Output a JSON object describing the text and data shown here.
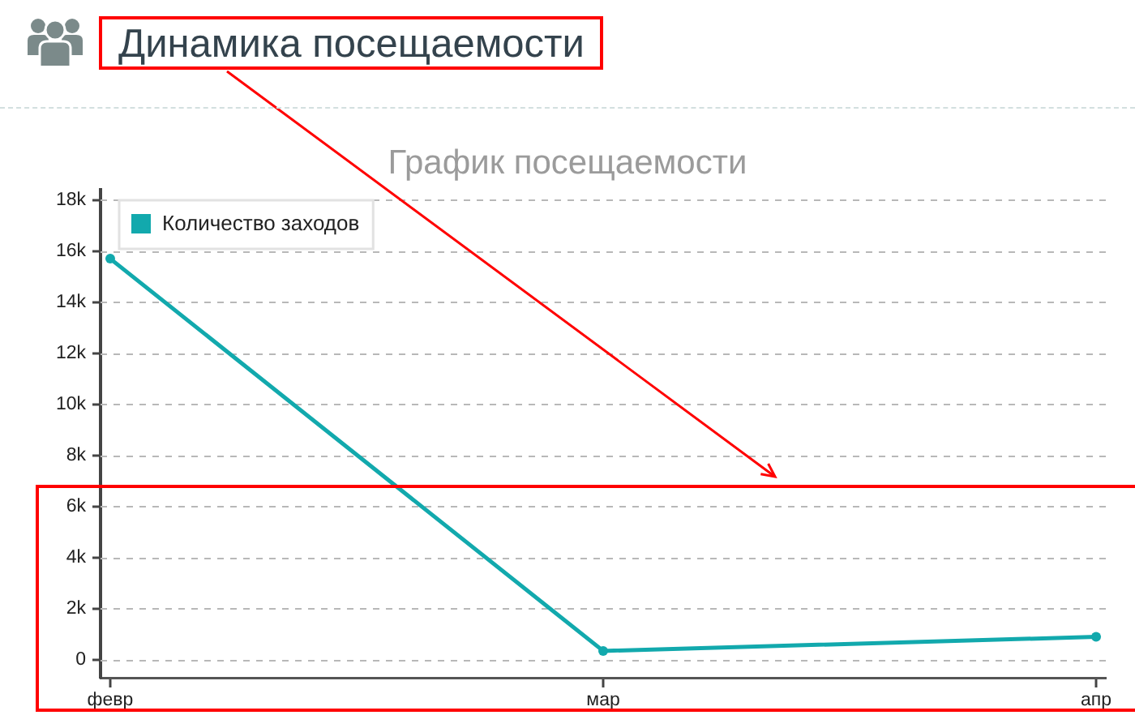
{
  "chart_data": {
    "type": "line",
    "title": "Динамика посещаемости",
    "subtitle": "График посещаемости",
    "categories": [
      "февр",
      "мар",
      "апр"
    ],
    "series": [
      {
        "name": "Количество заходов",
        "color": "#12a9ad",
        "values": [
          15700,
          350,
          900
        ]
      }
    ],
    "ylim": [
      -700,
      18400
    ],
    "yticks": [
      0,
      {
        "value": 2000,
        "label": "2k"
      },
      {
        "value": 4000,
        "label": "4k"
      },
      {
        "value": 6000,
        "label": "6k"
      },
      {
        "value": 8000,
        "label": "8k"
      },
      {
        "value": 10000,
        "label": "10k"
      },
      {
        "value": 12000,
        "label": "12k"
      },
      {
        "value": 14000,
        "label": "14k"
      },
      {
        "value": 16000,
        "label": "16k"
      },
      {
        "value": 18000,
        "label": "18k"
      }
    ],
    "grid": "y",
    "legend": "top left",
    "marker": "circle",
    "line_style": "solid"
  }
}
